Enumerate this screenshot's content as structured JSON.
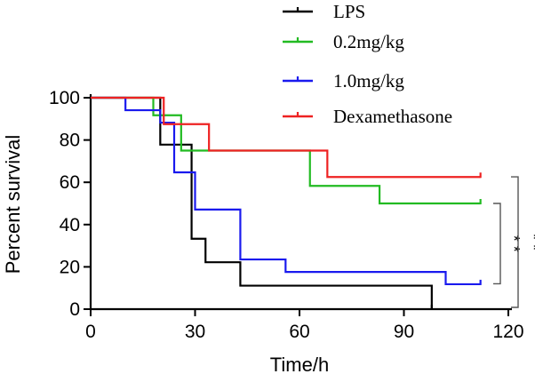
{
  "chart_data": {
    "type": "line",
    "xlabel": "Time/h",
    "ylabel": "Percent survival",
    "xlim": [
      0,
      120
    ],
    "ylim": [
      0,
      100
    ],
    "xticks": [
      0,
      30,
      60,
      90,
      120
    ],
    "yticks": [
      0,
      20,
      40,
      60,
      80,
      100
    ],
    "grid": false,
    "legend_placement": "top-center",
    "series": [
      {
        "name": "LPS",
        "color": "#000000",
        "step": true,
        "x": [
          0,
          20,
          28,
          29,
          33,
          43,
          98
        ],
        "y": [
          100,
          77.8,
          77.8,
          33.3,
          22.2,
          11.1,
          0
        ],
        "end_x": 98
      },
      {
        "name": "0.2mg/kg",
        "color": "#22bb22",
        "step": true,
        "x": [
          0,
          18,
          26,
          29,
          63,
          83
        ],
        "y": [
          100,
          91.7,
          75,
          75,
          58.3,
          50
        ],
        "end_x": 112
      },
      {
        "name": "1.0mg/kg",
        "color": "#1a1aee",
        "step": true,
        "x": [
          0,
          10,
          20,
          24,
          30,
          43,
          56,
          102
        ],
        "y": [
          100,
          94.1,
          88.2,
          64.7,
          47.1,
          23.5,
          17.6,
          11.8
        ],
        "end_x": 112
      },
      {
        "name": "Dexamethasone",
        "color": "#ee2222",
        "step": true,
        "x": [
          0,
          21,
          34,
          68
        ],
        "y": [
          100,
          87.5,
          75,
          62.5
        ],
        "end_x": 112
      }
    ],
    "annotations": [
      {
        "text": "* *",
        "bracket_y": [
          12,
          50
        ]
      },
      {
        "text": "* *",
        "bracket_y": [
          0,
          63
        ]
      }
    ]
  }
}
